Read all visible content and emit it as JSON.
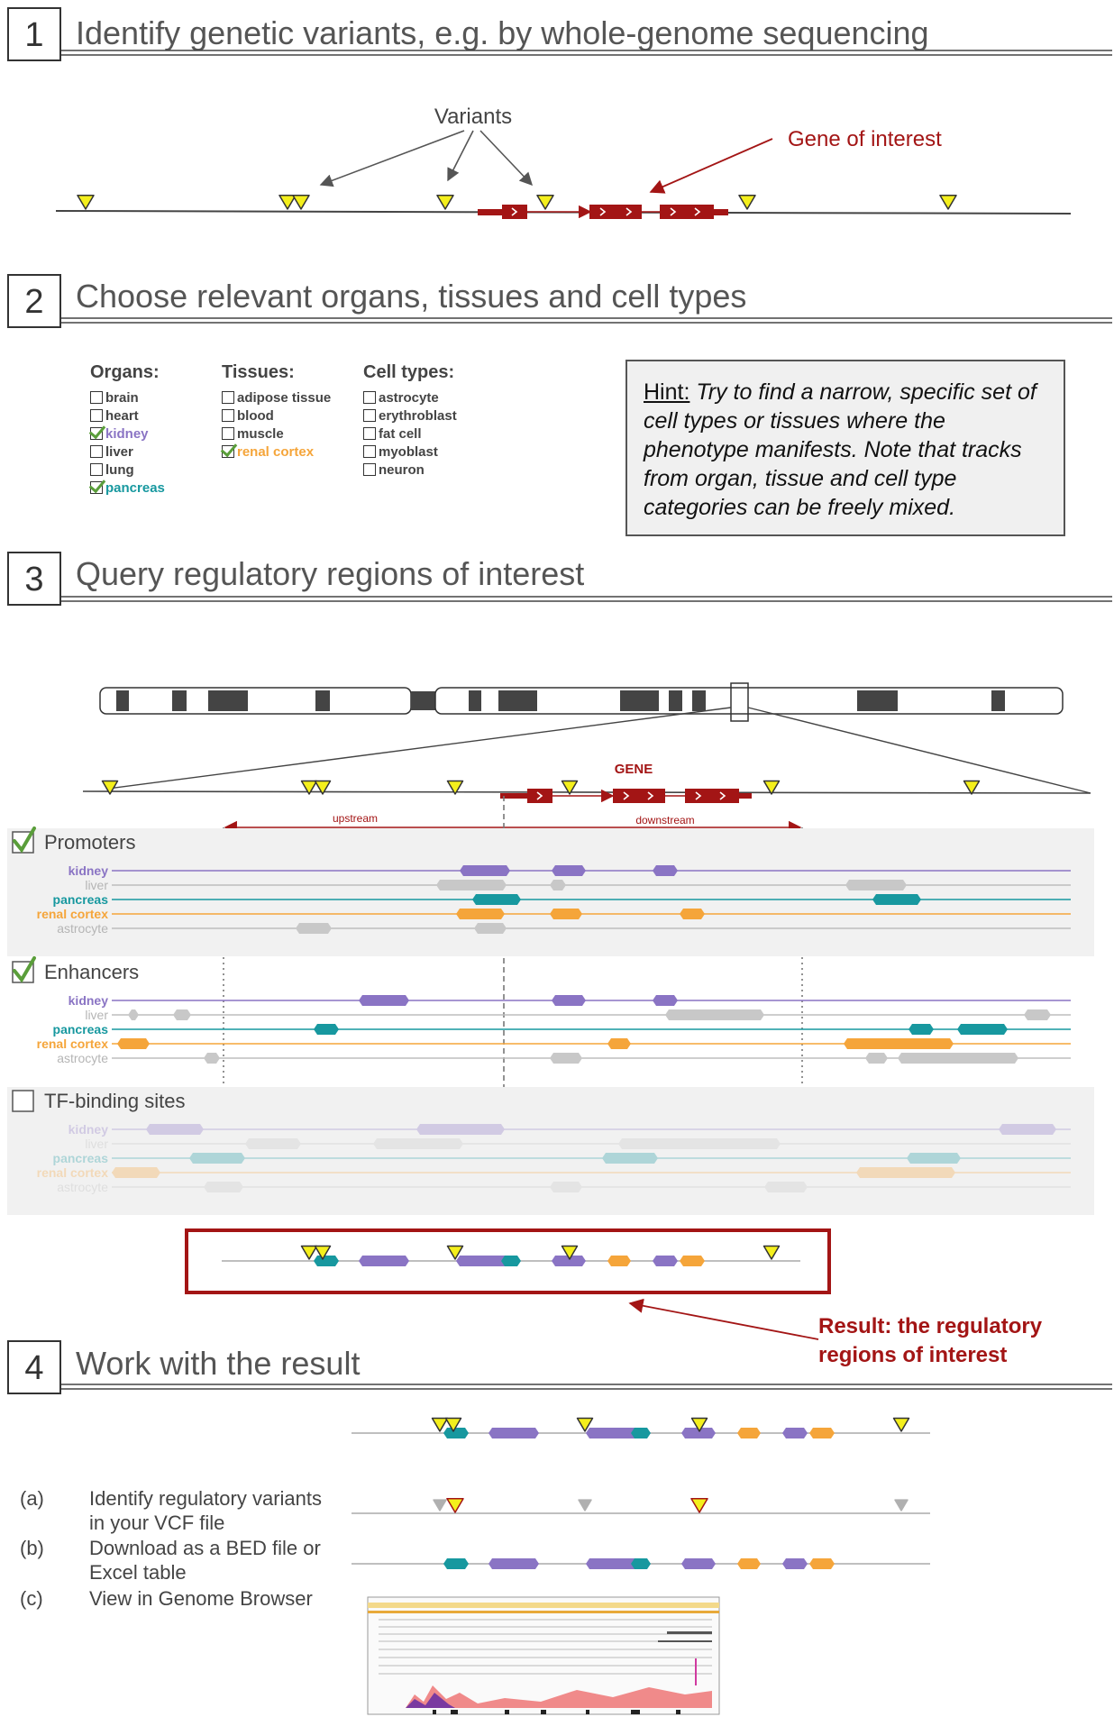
{
  "steps": [
    {
      "number": "1",
      "title": "Identify genetic variants, e.g. by whole-genome sequencing"
    },
    {
      "number": "2",
      "title": "Choose relevant organs, tissues and cell types"
    },
    {
      "number": "3",
      "title": "Query regulatory regions of interest"
    },
    {
      "number": "4",
      "title": "Work with the result"
    }
  ],
  "step1": {
    "variants_label": "Variants",
    "gene_label": "Gene of interest"
  },
  "step2": {
    "organs": {
      "title": "Organs:",
      "items": [
        {
          "label": "brain",
          "checked": false,
          "color": "#444444"
        },
        {
          "label": "heart",
          "checked": false,
          "color": "#444444"
        },
        {
          "label": "kidney",
          "checked": true,
          "color": "#8a74c4"
        },
        {
          "label": "liver",
          "checked": false,
          "color": "#444444"
        },
        {
          "label": "lung",
          "checked": false,
          "color": "#444444"
        },
        {
          "label": "pancreas",
          "checked": true,
          "color": "#17989f"
        }
      ]
    },
    "tissues": {
      "title": "Tissues:",
      "items": [
        {
          "label": "adipose tissue",
          "checked": false,
          "color": "#444444"
        },
        {
          "label": "blood",
          "checked": false,
          "color": "#444444"
        },
        {
          "label": "muscle",
          "checked": false,
          "color": "#444444"
        },
        {
          "label": "renal cortex",
          "checked": true,
          "color": "#f5a53a"
        }
      ]
    },
    "cell_types": {
      "title": "Cell types:",
      "items": [
        {
          "label": "astrocyte",
          "checked": false,
          "color": "#444444"
        },
        {
          "label": "erythroblast",
          "checked": false,
          "color": "#444444"
        },
        {
          "label": "fat cell",
          "checked": false,
          "color": "#444444"
        },
        {
          "label": "myoblast",
          "checked": false,
          "color": "#444444"
        },
        {
          "label": "neuron",
          "checked": false,
          "color": "#444444"
        }
      ]
    },
    "hint_label": "Hint:",
    "hint_text": " Try to find a narrow, specific set of cell types or tissues where the phenotype manifests. Note that tracks from organ, tissue and cell type categories can be freely mixed."
  },
  "step3": {
    "gene_label": "GENE",
    "upstream_label": "upstream",
    "downstream_label": "downstream",
    "panels": [
      {
        "title": "Promoters",
        "checked": true
      },
      {
        "title": "Enhancers",
        "checked": true
      },
      {
        "title": "TF-binding sites",
        "checked": false
      }
    ],
    "tracks": [
      {
        "label": "kidney",
        "color": "#8a74c4"
      },
      {
        "label": "liver",
        "color": "#b5b5b5"
      },
      {
        "label": "pancreas",
        "color": "#17989f"
      },
      {
        "label": "renal cortex",
        "color": "#f5a53a"
      },
      {
        "label": "astrocyte",
        "color": "#b5b5b5"
      }
    ],
    "result_label_line1": "Result: the regulatory",
    "result_label_line2": "regions of interest"
  },
  "step4": {
    "items": [
      {
        "letter": "(a)",
        "line1": "Identify regulatory variants",
        "line2": "in your VCF file"
      },
      {
        "letter": "(b)",
        "line1": "Download as a BED file or",
        "line2": "Excel table"
      },
      {
        "letter": "(c)",
        "line1": "View in Genome Browser",
        "line2": ""
      }
    ]
  },
  "colors": {
    "kidney": "#8a74c4",
    "pancreas": "#17989f",
    "renal_cortex": "#f5a53a",
    "gray": "#c8c8c8",
    "gene": "#a31515",
    "variant_fill": "#f4ef1c",
    "dark": "#444444"
  }
}
